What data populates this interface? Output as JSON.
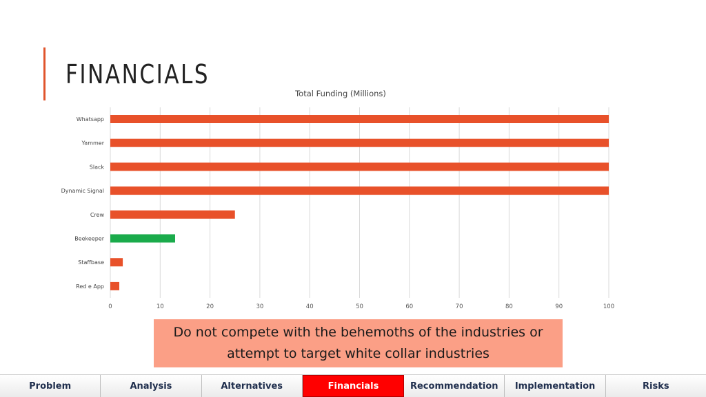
{
  "slide": {
    "title": "FINANCIALS",
    "accent_color": "#e0542c",
    "callout": "Do not compete with the behemoths of the industries or attempt to target white collar industries",
    "callout_color": "#fb9f86"
  },
  "chart_data": {
    "type": "bar",
    "orientation": "horizontal",
    "title": "Total Funding (Millions)",
    "categories": [
      "Whatsapp",
      "Yammer",
      "Slack",
      "Dynamic Signal",
      "Crew",
      "Beekeeper",
      "Staffbase",
      "Red e App"
    ],
    "values": [
      100,
      100,
      100,
      100,
      25,
      13,
      2.5,
      1.8
    ],
    "highlight": "Beekeeper",
    "colors": {
      "default": "#e8512a",
      "highlight": "#1aab4b"
    },
    "xlim": [
      0,
      100
    ],
    "xticks": [
      "0",
      "10",
      "20",
      "30",
      "40",
      "50",
      "60",
      "70",
      "80",
      "90",
      "100"
    ],
    "grid": true,
    "legend": "none"
  },
  "nav": {
    "items": [
      {
        "label": "Problem",
        "active": false
      },
      {
        "label": "Analysis",
        "active": false
      },
      {
        "label": "Alternatives",
        "active": false
      },
      {
        "label": "Financials",
        "active": true
      },
      {
        "label": "Recommendation",
        "active": false
      },
      {
        "label": "Implementation",
        "active": false
      },
      {
        "label": "Risks",
        "active": false
      }
    ],
    "active_color": "#ff0000"
  }
}
